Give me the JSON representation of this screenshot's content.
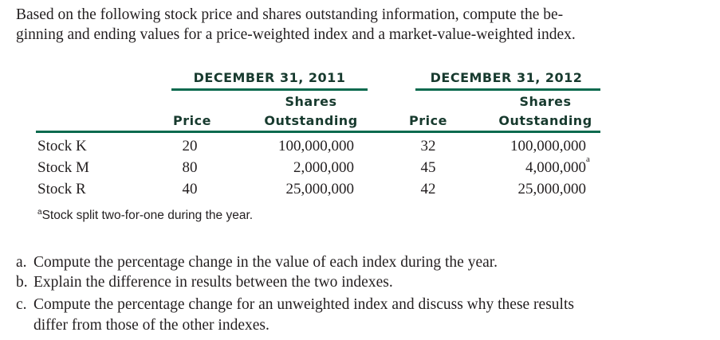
{
  "intro": [
    "Based on the following stock price and shares outstanding information, compute the be-",
    "ginning and ending values for a price-weighted index and a market-value-weighted index."
  ],
  "table": {
    "periods": [
      "DECEMBER 31, 2011",
      "DECEMBER 31, 2012"
    ],
    "col_price": "Price",
    "col_shares_1": "Shares",
    "col_shares_2": "Outstanding",
    "rows": [
      {
        "label": "Stock K",
        "p2011": "20",
        "s2011": "100,000,000",
        "p2012": "32",
        "s2012": "100,000,000",
        "note": ""
      },
      {
        "label": "Stock M",
        "p2011": "80",
        "s2011": "2,000,000",
        "p2012": "45",
        "s2012": "4,000,000",
        "note": "a"
      },
      {
        "label": "Stock R",
        "p2011": "40",
        "s2011": "25,000,000",
        "p2012": "42",
        "s2012": "25,000,000",
        "note": ""
      }
    ],
    "footnote_mark": "a",
    "footnote": "Stock split two-for-one during the year."
  },
  "questions": [
    {
      "letter": "a.",
      "text": "Compute the percentage change in the value of each index during the year."
    },
    {
      "letter": "b.",
      "text": "Explain the difference in results between the two indexes."
    },
    {
      "letter": "c.",
      "text": "Compute the percentage change for an unweighted index and discuss why these results",
      "text2": "differ from those of the other indexes."
    }
  ]
}
